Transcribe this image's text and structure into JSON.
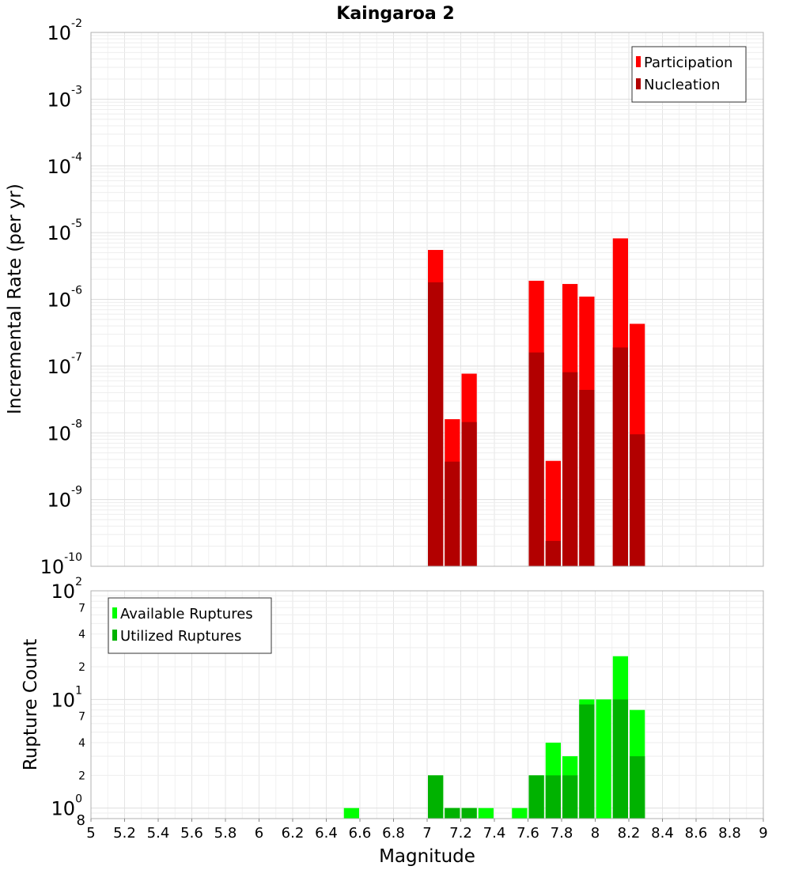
{
  "chart_data": [
    {
      "type": "bar",
      "title": "Kaingaroa 2",
      "ylabel": "Incremental Rate (per yr)",
      "xlabel": "",
      "yscale": "log",
      "ylim": [
        1e-10,
        0.01
      ],
      "xlim": [
        5,
        9
      ],
      "bin_width": 0.1,
      "legend": "top-right",
      "grid": true,
      "series": [
        {
          "name": "Participation",
          "color": "#ff0000",
          "bins": [
            {
              "x": 7.05,
              "y": 5.5e-06
            },
            {
              "x": 7.15,
              "y": 1.6e-08
            },
            {
              "x": 7.25,
              "y": 7.7e-08
            },
            {
              "x": 7.65,
              "y": 1.9e-06
            },
            {
              "x": 7.75,
              "y": 3.8e-09
            },
            {
              "x": 7.85,
              "y": 1.7e-06
            },
            {
              "x": 7.95,
              "y": 1.1e-06
            },
            {
              "x": 8.15,
              "y": 8.2e-06
            },
            {
              "x": 8.25,
              "y": 4.3e-07
            }
          ]
        },
        {
          "name": "Nucleation",
          "color": "#b20000",
          "bins": [
            {
              "x": 7.05,
              "y": 1.8e-06
            },
            {
              "x": 7.15,
              "y": 3.7e-09
            },
            {
              "x": 7.25,
              "y": 1.45e-08
            },
            {
              "x": 7.65,
              "y": 1.6e-07
            },
            {
              "x": 7.75,
              "y": 2.4e-10
            },
            {
              "x": 7.85,
              "y": 8.1e-08
            },
            {
              "x": 7.95,
              "y": 4.4e-08
            },
            {
              "x": 8.15,
              "y": 1.9e-07
            },
            {
              "x": 8.25,
              "y": 9.5e-09
            }
          ]
        }
      ]
    },
    {
      "type": "bar",
      "title": "",
      "ylabel": "Rupture Count",
      "xlabel": "Magnitude",
      "yscale": "log",
      "ylim": [
        0.8,
        100
      ],
      "xlim": [
        5,
        9
      ],
      "bin_width": 0.1,
      "legend": "top-left",
      "grid": true,
      "x_ticks": [
        "5",
        "5.2",
        "5.4",
        "5.6",
        "5.8",
        "6",
        "6.2",
        "6.4",
        "6.6",
        "6.8",
        "7",
        "7.2",
        "7.4",
        "7.6",
        "7.8",
        "8",
        "8.2",
        "8.4",
        "8.6",
        "8.8",
        "9"
      ],
      "y_minor_labels": [
        "8",
        "2",
        "4",
        "7",
        "2",
        "4",
        "7"
      ],
      "series": [
        {
          "name": "Available Ruptures",
          "color": "#00ff00",
          "bins": [
            {
              "x": 6.55,
              "y": 1
            },
            {
              "x": 7.05,
              "y": 2
            },
            {
              "x": 7.15,
              "y": 1
            },
            {
              "x": 7.25,
              "y": 1
            },
            {
              "x": 7.35,
              "y": 1
            },
            {
              "x": 7.55,
              "y": 1
            },
            {
              "x": 7.65,
              "y": 2
            },
            {
              "x": 7.75,
              "y": 4
            },
            {
              "x": 7.85,
              "y": 3
            },
            {
              "x": 7.95,
              "y": 10
            },
            {
              "x": 8.05,
              "y": 10
            },
            {
              "x": 8.15,
              "y": 25
            },
            {
              "x": 8.25,
              "y": 8
            }
          ]
        },
        {
          "name": "Utilized Ruptures",
          "color": "#00b200",
          "bins": [
            {
              "x": 7.05,
              "y": 2
            },
            {
              "x": 7.15,
              "y": 1
            },
            {
              "x": 7.25,
              "y": 1
            },
            {
              "x": 7.65,
              "y": 2
            },
            {
              "x": 7.75,
              "y": 2
            },
            {
              "x": 7.85,
              "y": 2
            },
            {
              "x": 7.95,
              "y": 9
            },
            {
              "x": 8.15,
              "y": 10
            },
            {
              "x": 8.25,
              "y": 3
            }
          ]
        }
      ]
    }
  ]
}
